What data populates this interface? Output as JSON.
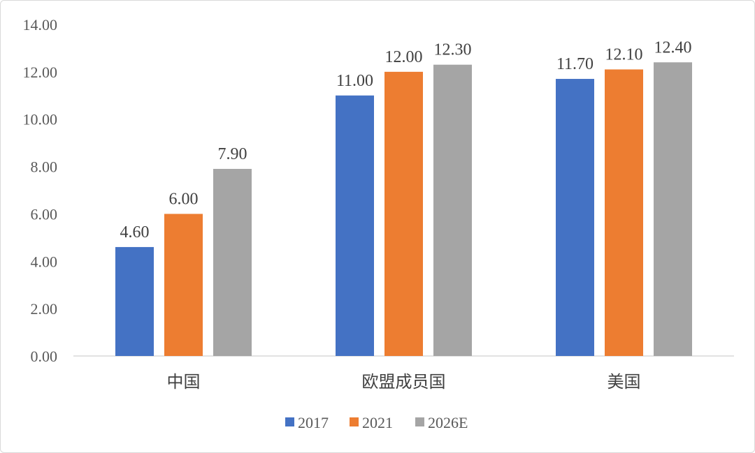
{
  "chart_data": {
    "type": "bar",
    "categories": [
      "中国",
      "欧盟成员国",
      "美国"
    ],
    "series": [
      {
        "name": "2017",
        "color": "#4472C4",
        "values": [
          4.6,
          11.0,
          11.7
        ]
      },
      {
        "name": "2021",
        "color": "#ED7D31",
        "values": [
          6.0,
          12.0,
          12.1
        ]
      },
      {
        "name": "2026E",
        "color": "#A5A5A5",
        "values": [
          7.9,
          12.3,
          12.4
        ]
      }
    ],
    "ylim": [
      0,
      14
    ],
    "yticks": [
      "0.00",
      "2.00",
      "4.00",
      "6.00",
      "8.00",
      "10.00",
      "12.00",
      "14.00"
    ],
    "data_labels": [
      [
        "4.60",
        "11.00",
        "11.70"
      ],
      [
        "6.00",
        "12.00",
        "12.10"
      ],
      [
        "7.90",
        "12.30",
        "12.40"
      ]
    ],
    "legend_position": "bottom",
    "grid": false
  }
}
